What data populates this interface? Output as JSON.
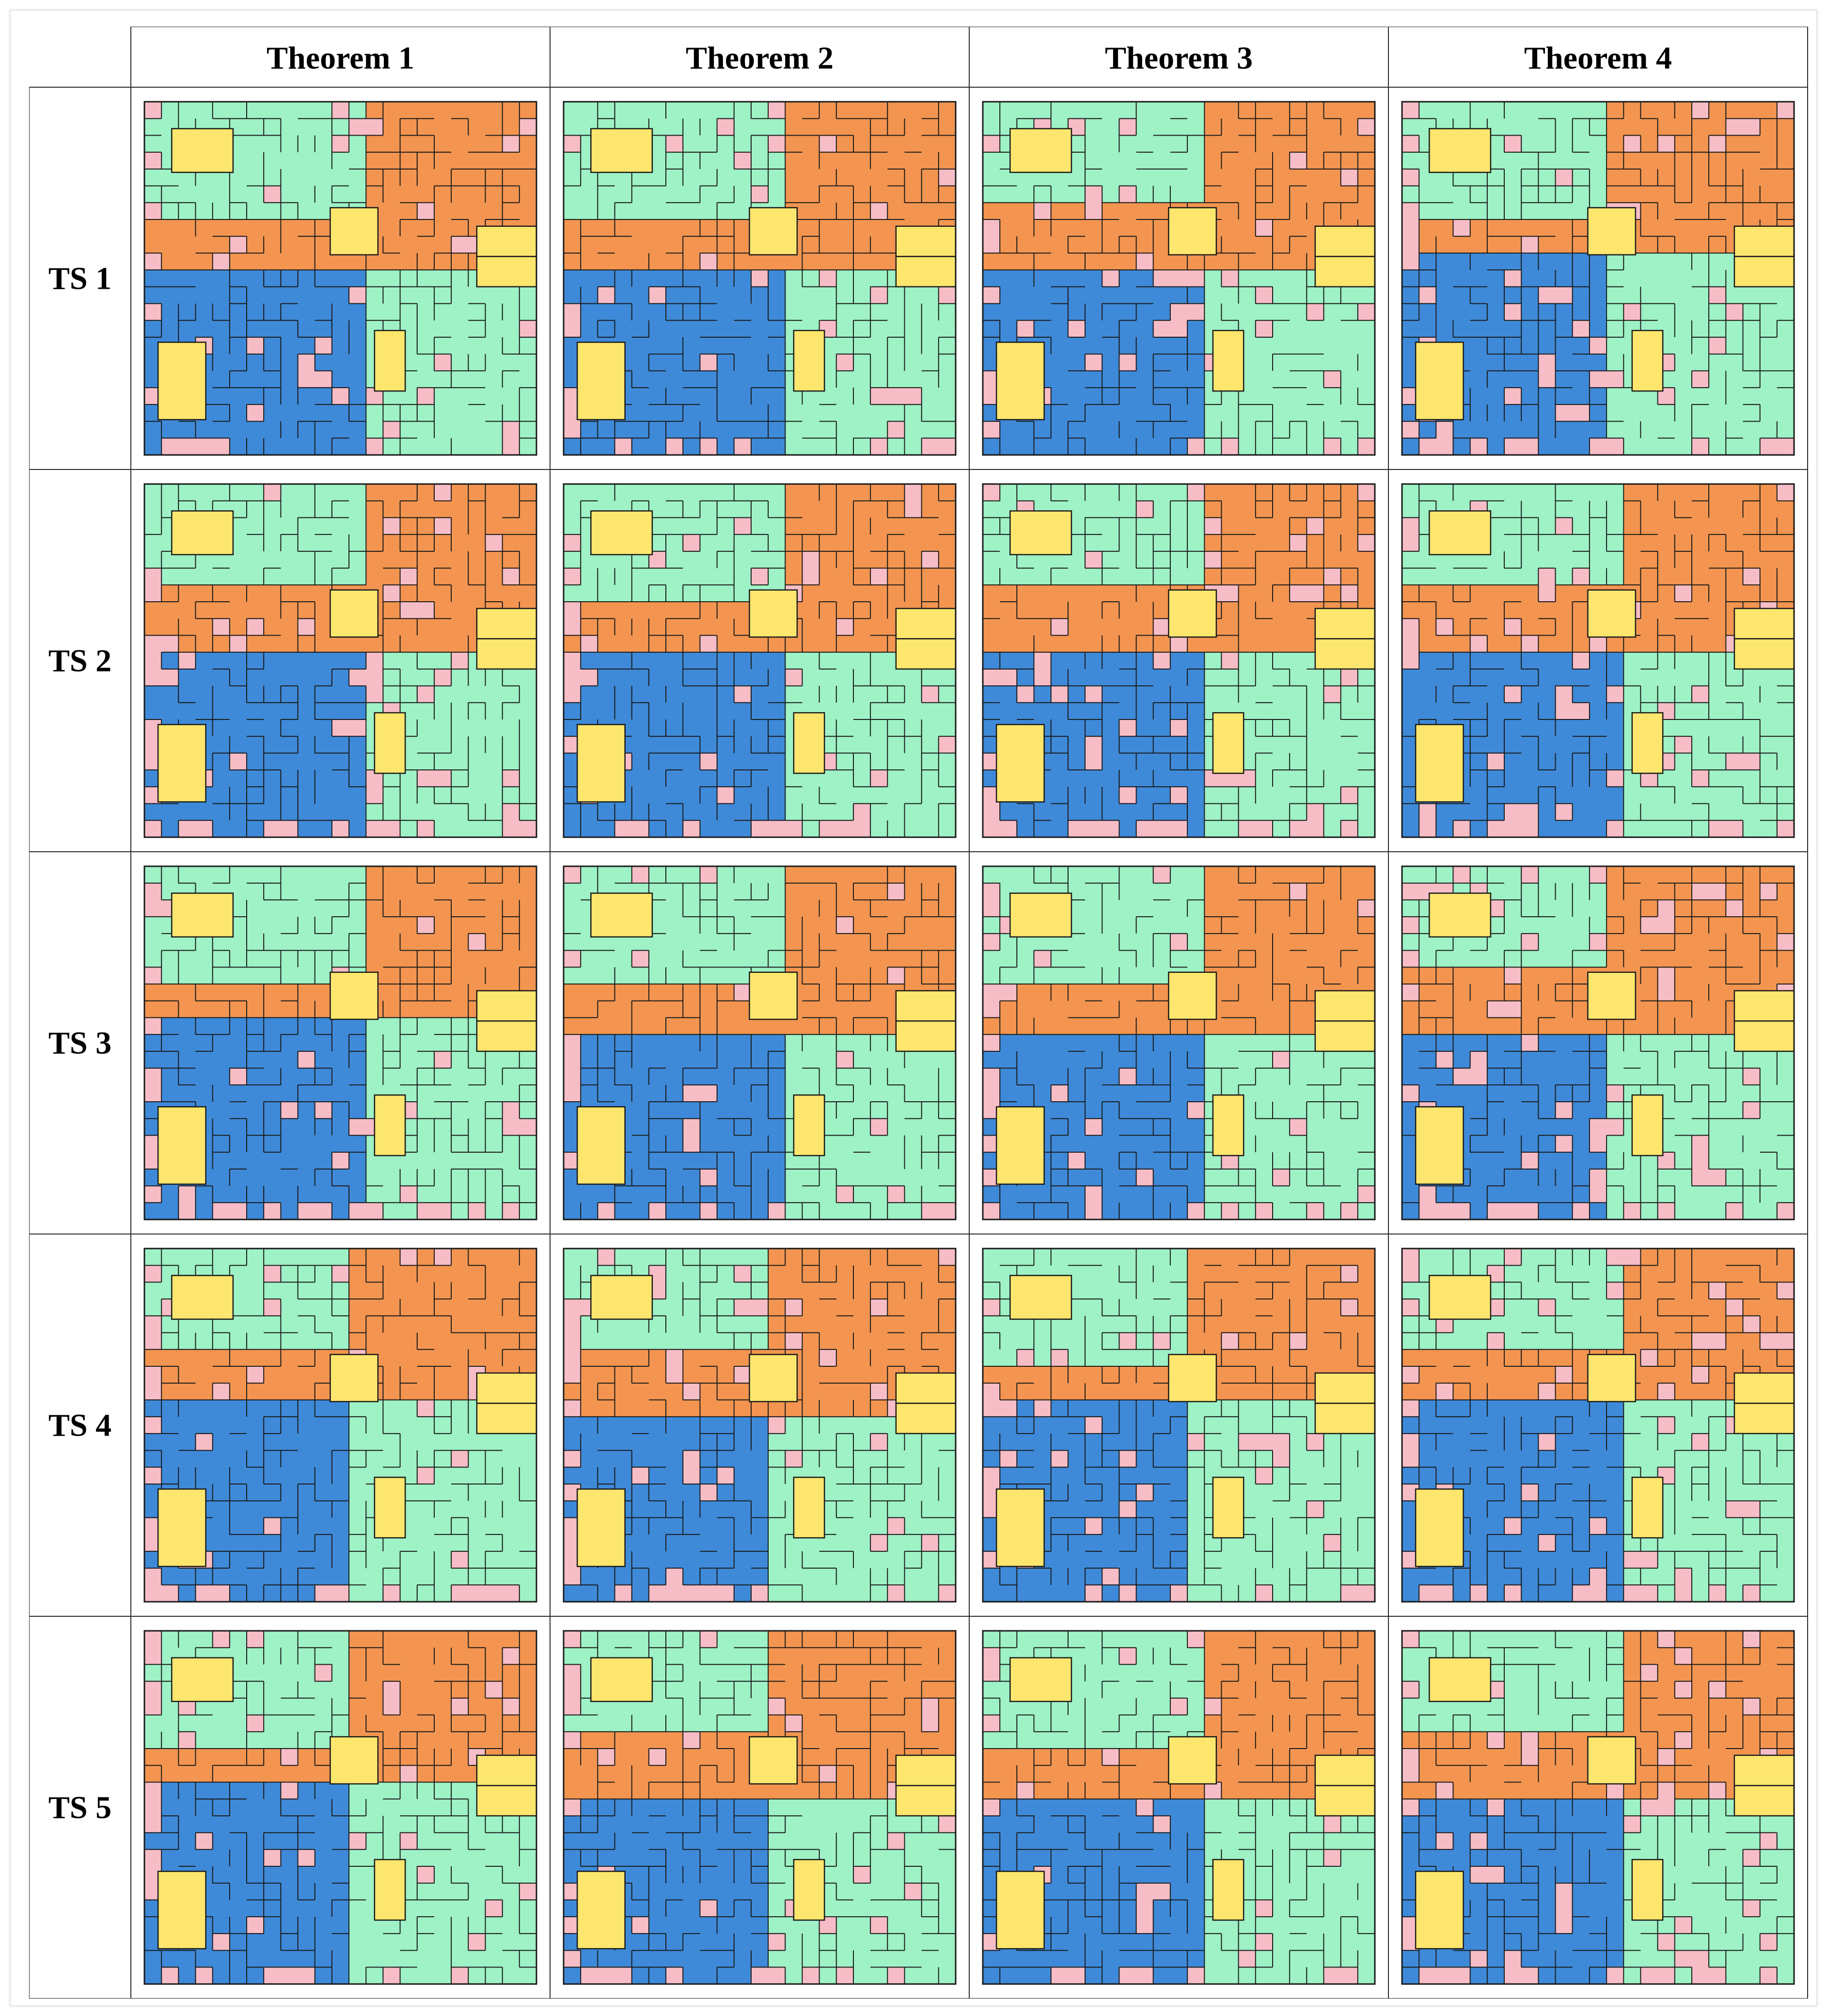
{
  "figure": {
    "columns": [
      "Theorem 1",
      "Theorem 2",
      "Theorem 3",
      "Theorem 4"
    ],
    "rows": [
      "TS 1",
      "TS 2",
      "TS 3",
      "TS 4",
      "TS 5"
    ],
    "legend_colors": {
      "green_zone": "#9ef2c5",
      "orange_zone": "#f39550",
      "blue_zone": "#3e8ad9",
      "unassigned": "#f7bdc6",
      "fixed_block": "#fce66e",
      "grid_line": "#1a1a1a"
    },
    "panel_grid": {
      "cols": 23,
      "rows": 21
    }
  }
}
